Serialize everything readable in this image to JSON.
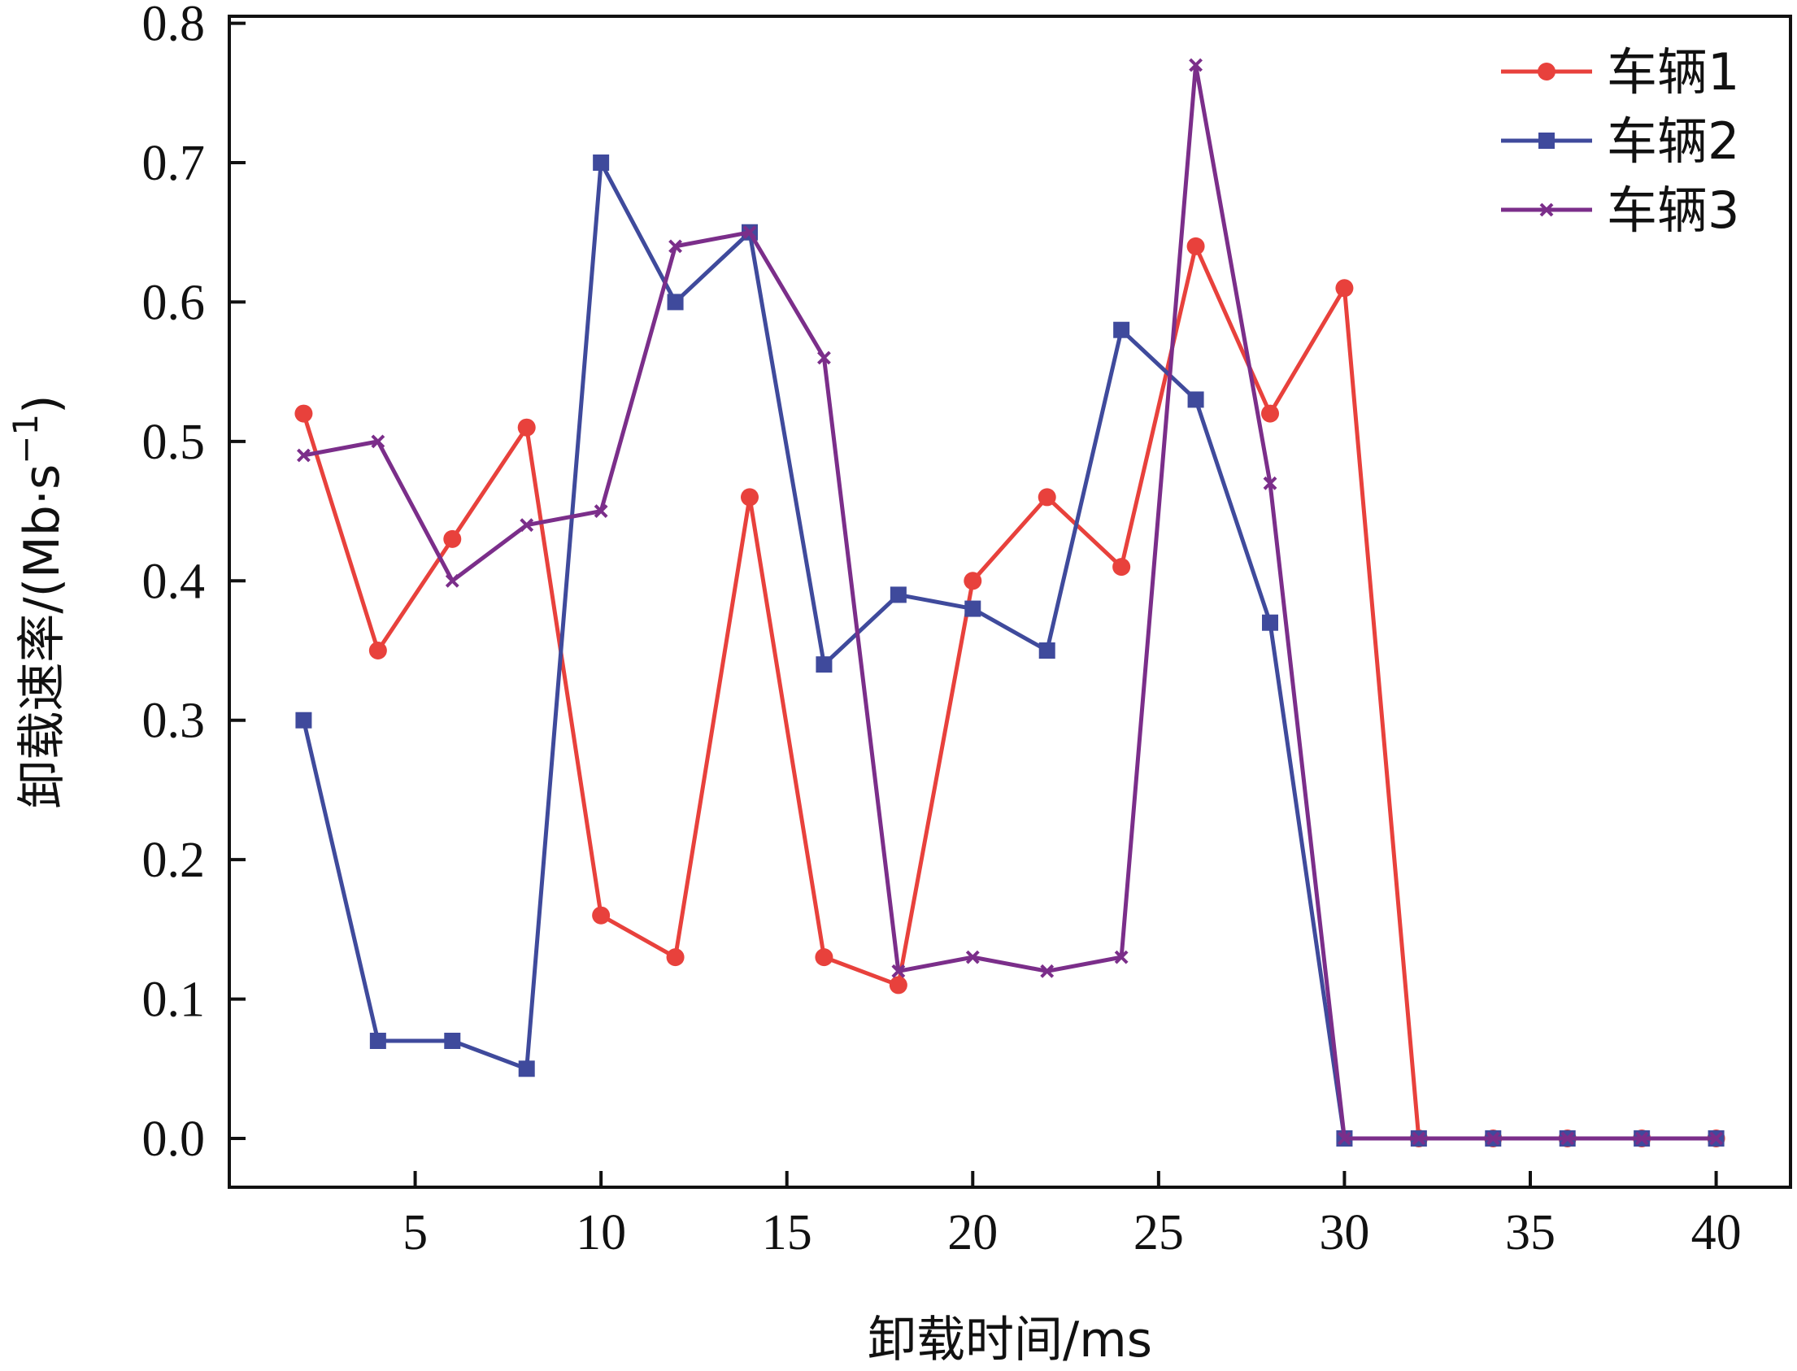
{
  "chart_data": {
    "type": "line",
    "title": "",
    "xlabel": "卸载时间/ms",
    "ylabel": "卸载速率/(Mb·s",
    "ylabel_sup": "−1",
    "ylabel_close": ")",
    "xlim": [
      0,
      42
    ],
    "ylim": [
      -0.035,
      0.805
    ],
    "xticks": [
      5,
      10,
      15,
      20,
      25,
      30,
      35,
      40
    ],
    "yticks": [
      0.0,
      0.1,
      0.2,
      0.3,
      0.4,
      0.5,
      0.6,
      0.7,
      0.8
    ],
    "xtick_labels": [
      "5",
      "10",
      "15",
      "20",
      "25",
      "30",
      "35",
      "40"
    ],
    "ytick_labels": [
      "0.0",
      "0.1",
      "0.2",
      "0.3",
      "0.4",
      "0.5",
      "0.6",
      "0.7",
      "0.8"
    ],
    "grid": false,
    "legend_position": "top-right",
    "series": [
      {
        "name": "车辆1",
        "color": "#e8413c",
        "marker": "circle",
        "x": [
          2,
          4,
          6,
          8,
          10,
          12,
          14,
          16,
          18,
          20,
          22,
          24,
          26,
          28,
          30,
          32,
          34,
          36,
          38,
          40
        ],
        "y": [
          0.52,
          0.35,
          0.43,
          0.51,
          0.16,
          0.13,
          0.46,
          0.13,
          0.11,
          0.4,
          0.46,
          0.41,
          0.64,
          0.52,
          0.61,
          0.0,
          0.0,
          0.0,
          0.0,
          0.0
        ]
      },
      {
        "name": "车辆2",
        "color": "#3f4a9c",
        "marker": "square",
        "x": [
          2,
          4,
          6,
          8,
          10,
          12,
          14,
          16,
          18,
          20,
          22,
          24,
          26,
          28,
          30,
          32,
          34,
          36,
          38,
          40
        ],
        "y": [
          0.3,
          0.07,
          0.07,
          0.05,
          0.7,
          0.6,
          0.65,
          0.34,
          0.39,
          0.38,
          0.35,
          0.58,
          0.53,
          0.37,
          0.0,
          0.0,
          0.0,
          0.0,
          0.0,
          0.0
        ]
      },
      {
        "name": "车辆3",
        "color": "#7b2e8a",
        "marker": "x",
        "x": [
          2,
          4,
          6,
          8,
          10,
          12,
          14,
          16,
          18,
          20,
          22,
          24,
          26,
          28,
          30,
          32,
          34,
          36,
          38,
          40
        ],
        "y": [
          0.49,
          0.5,
          0.4,
          0.44,
          0.45,
          0.64,
          0.65,
          0.56,
          0.12,
          0.13,
          0.12,
          0.13,
          0.77,
          0.47,
          0.0,
          0.0,
          0.0,
          0.0,
          0.0,
          0.0
        ]
      }
    ]
  }
}
